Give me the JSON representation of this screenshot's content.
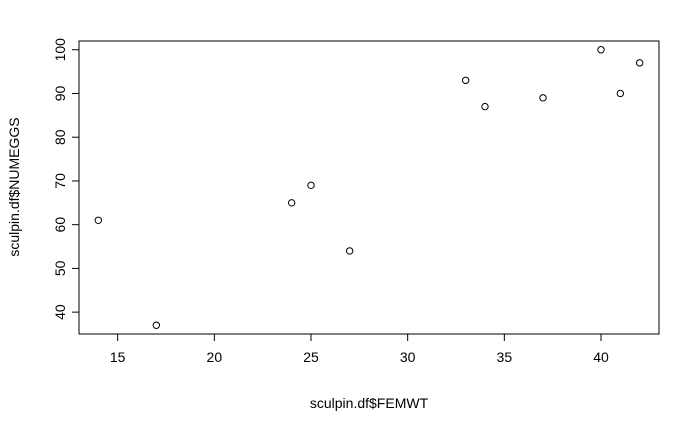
{
  "chart_data": {
    "type": "scatter",
    "title": "",
    "xlabel": "sculpin.df$FEMWT",
    "ylabel": "sculpin.df$NUMEGGS",
    "xlim": [
      13,
      43
    ],
    "ylim": [
      35,
      102
    ],
    "xticks": [
      15,
      20,
      25,
      30,
      35,
      40
    ],
    "yticks": [
      40,
      50,
      60,
      70,
      80,
      90,
      100
    ],
    "grid": false,
    "marker": "open-circle",
    "points": [
      {
        "x": 14,
        "y": 61
      },
      {
        "x": 17,
        "y": 37
      },
      {
        "x": 24,
        "y": 65
      },
      {
        "x": 25,
        "y": 69
      },
      {
        "x": 27,
        "y": 54
      },
      {
        "x": 33,
        "y": 93
      },
      {
        "x": 34,
        "y": 87
      },
      {
        "x": 37,
        "y": 89
      },
      {
        "x": 40,
        "y": 100
      },
      {
        "x": 41,
        "y": 90
      },
      {
        "x": 42,
        "y": 97
      }
    ]
  }
}
